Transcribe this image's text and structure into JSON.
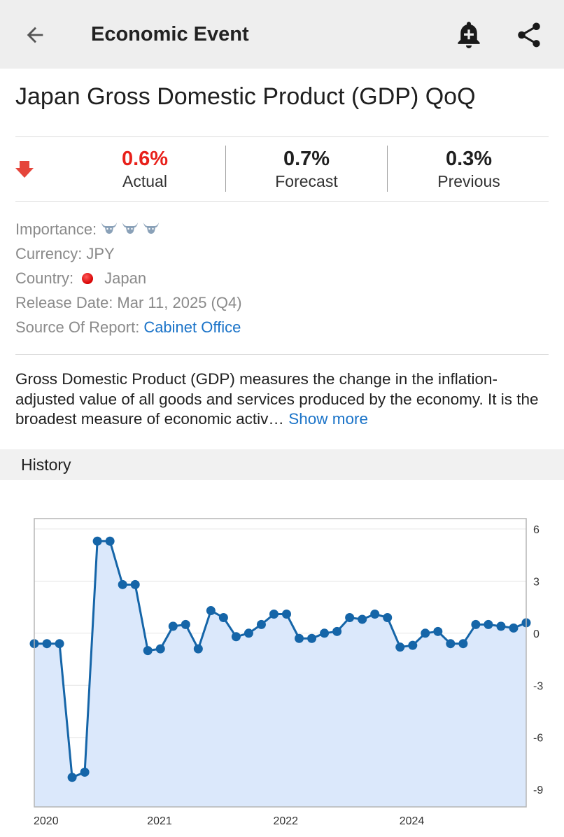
{
  "appbar": {
    "title": "Economic Event",
    "back_icon": "arrow-back-icon",
    "alert_icon": "bell-plus-icon",
    "share_icon": "share-icon"
  },
  "event": {
    "title": "Japan Gross Domestic Product (GDP) QoQ"
  },
  "stats": {
    "trend_icon": "arrow-down-icon",
    "actual": {
      "value": "0.6%",
      "label": "Actual",
      "color": "#e8201a"
    },
    "forecast": {
      "value": "0.7%",
      "label": "Forecast"
    },
    "previous": {
      "value": "0.3%",
      "label": "Previous"
    }
  },
  "info": {
    "importance_label": "Importance:",
    "importance_level": 3,
    "importance_icon": "bull-icon",
    "currency_label": "Currency:",
    "currency_value": "JPY",
    "country_label": "Country:",
    "country_value": "Japan",
    "release_label": "Release Date:",
    "release_value": "Mar 11, 2025 (Q4)",
    "source_label": "Source Of Report:",
    "source_value": "Cabinet Office"
  },
  "description": {
    "text": "Gross Domestic Product (GDP) measures the change in the inflation-adjusted value of all goods and services produced by the economy. It is the broadest measure of economic activ…",
    "show_more": "Show more"
  },
  "history": {
    "title": "History"
  },
  "chart_data": {
    "type": "area",
    "title": "",
    "xlabel": "",
    "ylabel": "",
    "ylim": [
      -10.0,
      6.6
    ],
    "y_ticks": [
      6,
      3,
      0,
      -3,
      -6,
      -9
    ],
    "x_tick_labels": [
      "2020",
      "2021",
      "2022",
      "2024"
    ],
    "x_tick_index": [
      0,
      9,
      19,
      29
    ],
    "line_color": "#1565a8",
    "fill_color": "#dbe8fb",
    "grid": true,
    "series": [
      {
        "values": [
          -0.6,
          -0.6,
          -0.6,
          -8.3,
          -8.0,
          5.3,
          5.3,
          2.8,
          2.8,
          -1.0,
          -0.9,
          0.4,
          0.5,
          -0.9,
          1.3,
          0.9,
          -0.2,
          0.0,
          0.5,
          1.1,
          1.1,
          -0.3,
          -0.3,
          0.0,
          0.1,
          0.9,
          0.8,
          1.1,
          0.9,
          -0.8,
          -0.7,
          0.0,
          0.1,
          -0.6,
          -0.6,
          0.5,
          0.5,
          0.4,
          0.3,
          0.6
        ]
      }
    ]
  }
}
